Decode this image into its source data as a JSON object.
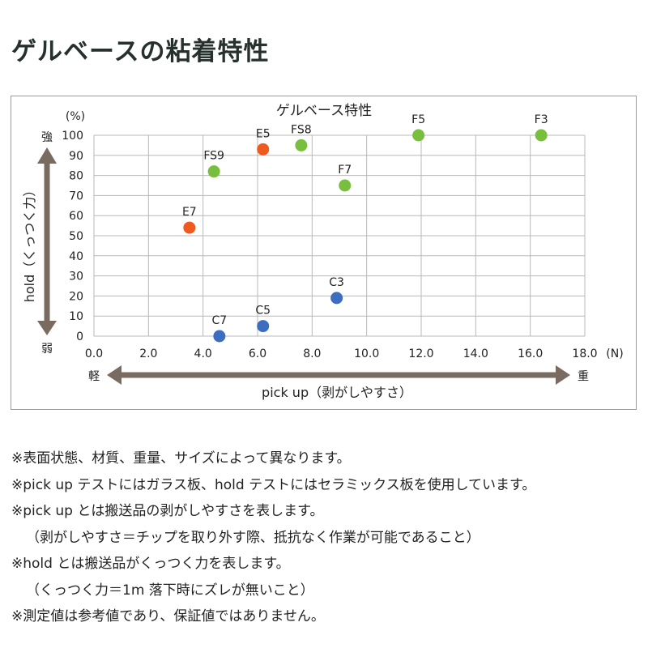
{
  "page": {
    "title": "ゲルベースの粘着特性"
  },
  "colors": {
    "red": "#ef5a1f",
    "green": "#78bf3e",
    "blue": "#3c6dc0",
    "arrow": "#7a6b61",
    "grid": "#b8b8b8"
  },
  "chart_data": {
    "type": "scatter",
    "title": "ゲルベース特性",
    "xlabel": "pick up（剥がしやすさ）",
    "ylabel": "hold（くっつく力）",
    "x_unit": "(N)",
    "y_unit": "(%)",
    "xlim": [
      0,
      18
    ],
    "ylim": [
      0,
      100
    ],
    "x_ticks": [
      "0.0",
      "2.0",
      "4.0",
      "6.0",
      "8.0",
      "10.0",
      "12.0",
      "14.0",
      "16.0",
      "18.0"
    ],
    "y_ticks": [
      "0",
      "10",
      "20",
      "30",
      "40",
      "50",
      "60",
      "70",
      "80",
      "90",
      "100"
    ],
    "grid": true,
    "x_arrow_left": "軽",
    "x_arrow_right": "重",
    "y_arrow_top": "強",
    "y_arrow_bottom": "弱",
    "points": [
      {
        "label": "E5",
        "x": 6.2,
        "y": 93,
        "color": "red"
      },
      {
        "label": "E7",
        "x": 3.5,
        "y": 54,
        "color": "red"
      },
      {
        "label": "FS9",
        "x": 4.4,
        "y": 82,
        "color": "green"
      },
      {
        "label": "FS8",
        "x": 7.6,
        "y": 95,
        "color": "green"
      },
      {
        "label": "F7",
        "x": 9.2,
        "y": 75,
        "color": "green"
      },
      {
        "label": "F5",
        "x": 11.9,
        "y": 100,
        "color": "green"
      },
      {
        "label": "F3",
        "x": 16.4,
        "y": 100,
        "color": "green"
      },
      {
        "label": "C7",
        "x": 4.6,
        "y": 0,
        "color": "blue"
      },
      {
        "label": "C5",
        "x": 6.2,
        "y": 5,
        "color": "blue"
      },
      {
        "label": "C3",
        "x": 8.9,
        "y": 19,
        "color": "blue"
      }
    ]
  },
  "notes": [
    "※表面状態、材質、重量、サイズによって異なります。",
    "※pick up テストにはガラス板、hold テストにはセラミックス板を使用しています。",
    "※pick up とは搬送品の剥がしやすさを表します。",
    "（剥がしやすさ＝チップを取り外す際、抵抗なく作業が可能であること）",
    "※hold とは搬送品がくっつく力を表します。",
    "（くっつく力＝1m 落下時にズレが無いこと）",
    "※測定値は参考値であり、保証値ではありません。"
  ]
}
